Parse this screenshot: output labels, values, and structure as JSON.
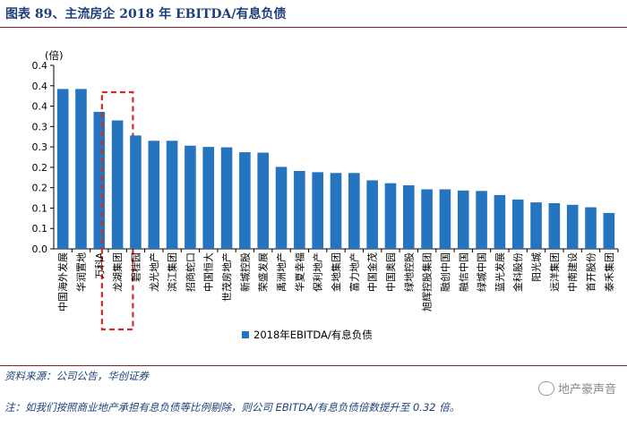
{
  "title": "图表 89、主流房企 2018 年 EBITDA/有息负债",
  "source": "资料来源：公司公告，华创证券",
  "note": "注：如我们按照商业地产承担有息负债等比例剔除，则公司 EBITDA/有息负债倍数提升至 0.32 倍。",
  "watermark": "地产豪声音",
  "colors": {
    "bar": "#2574c0",
    "title": "#1f3f7a",
    "rule": "#8a1e2a",
    "highlight": "#d42a2a"
  },
  "chart_data": {
    "type": "bar",
    "title": "",
    "xlabel": "",
    "ylabel": "(倍)",
    "ylim": [
      0,
      0.45
    ],
    "yticks": [
      0,
      0.05,
      0.1,
      0.15,
      0.2,
      0.25,
      0.3,
      0.35,
      0.4,
      0.45
    ],
    "ytick_labels": [
      "0.0",
      "0.1",
      "0.1",
      "0.2",
      "0.2",
      "0.3",
      "0.3",
      "0.4",
      "0.4",
      "0.4"
    ],
    "categories": [
      "中国海外发展",
      "华润置地",
      "万科A",
      "龙湖集团",
      "碧桂园",
      "龙光地产",
      "滨江集团",
      "招商蛇口",
      "中国恒大",
      "世茂房地产",
      "新城控股",
      "荣盛发展",
      "禹洲地产",
      "华夏幸福",
      "保利地产",
      "金地集团",
      "富力地产",
      "中国金茂",
      "中国奥园",
      "绿地控股",
      "旭辉控股集团",
      "融创中国",
      "融信中国",
      "绿城中国",
      "蓝光发展",
      "金科股份",
      "阳光城",
      "远洋集团",
      "中南建设",
      "首开股份",
      "泰禾集团"
    ],
    "series": [
      {
        "name": "2018年EBITDA/有息负债",
        "values": [
          0.392,
          0.392,
          0.336,
          0.315,
          0.278,
          0.265,
          0.265,
          0.253,
          0.25,
          0.249,
          0.237,
          0.236,
          0.201,
          0.191,
          0.188,
          0.186,
          0.186,
          0.168,
          0.161,
          0.156,
          0.146,
          0.146,
          0.143,
          0.142,
          0.132,
          0.121,
          0.114,
          0.112,
          0.108,
          0.102,
          0.088
        ]
      }
    ],
    "highlight": {
      "category": "龙湖集团"
    },
    "legend": {
      "position": "bottom-center"
    },
    "grid": false
  }
}
